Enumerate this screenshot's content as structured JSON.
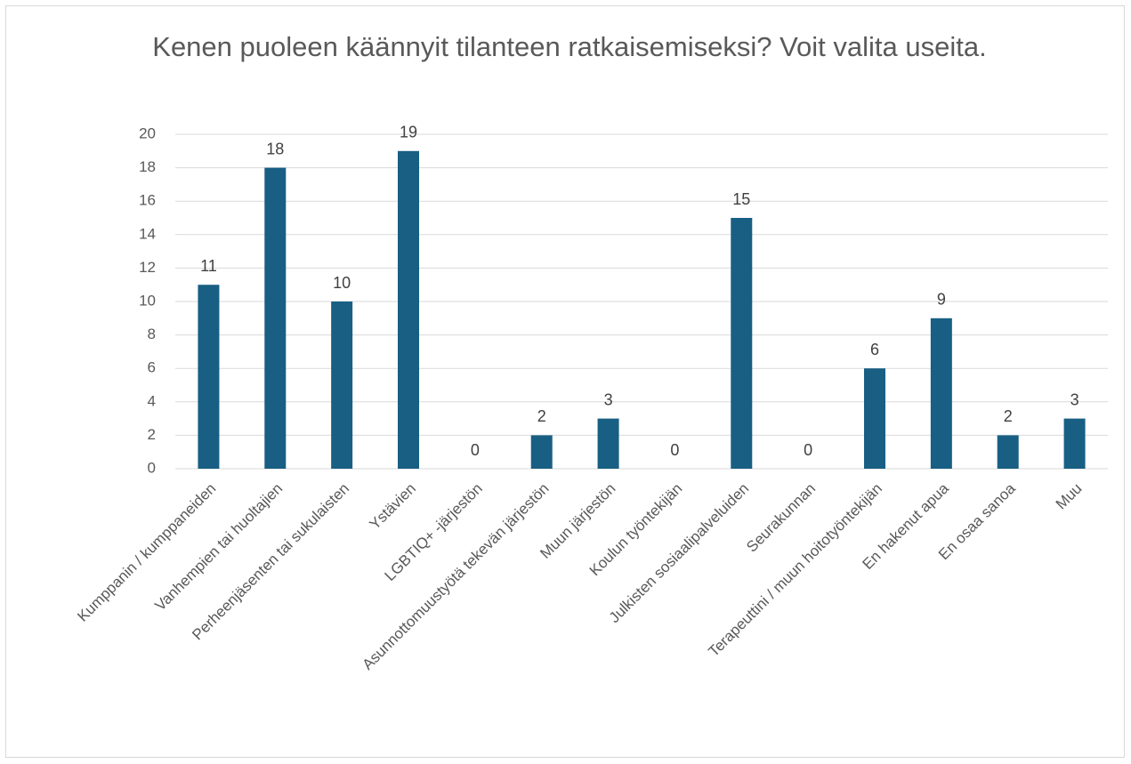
{
  "chart_data": {
    "type": "bar",
    "title": "Kenen puoleen käännyit tilanteen ratkaisemiseksi? Voit valita useita.",
    "categories": [
      "Kumppanin / kumppaneiden",
      "Vanhempien tai huoltajien",
      "Perheenjäsenten tai sukulaisten",
      "Ystävien",
      "LGBTIQ+ -järjestön",
      "Asunnottomuustyötä tekevän järjestön",
      "Muun järjestön",
      "Koulun työntekijän",
      "Julkisten sosiaalipalveluiden",
      "Seurakunnan",
      "Terapeuttini / muun hoitotyöntekijän",
      "En hakenut apua",
      "En osaa sanoa",
      "Muu"
    ],
    "values": [
      11,
      18,
      10,
      19,
      0,
      2,
      3,
      0,
      15,
      0,
      6,
      9,
      2,
      3
    ],
    "color": "#185f83",
    "ylim": [
      0,
      20
    ],
    "yticks": [
      0,
      2,
      4,
      6,
      8,
      10,
      12,
      14,
      16,
      18,
      20
    ],
    "grid": true
  }
}
